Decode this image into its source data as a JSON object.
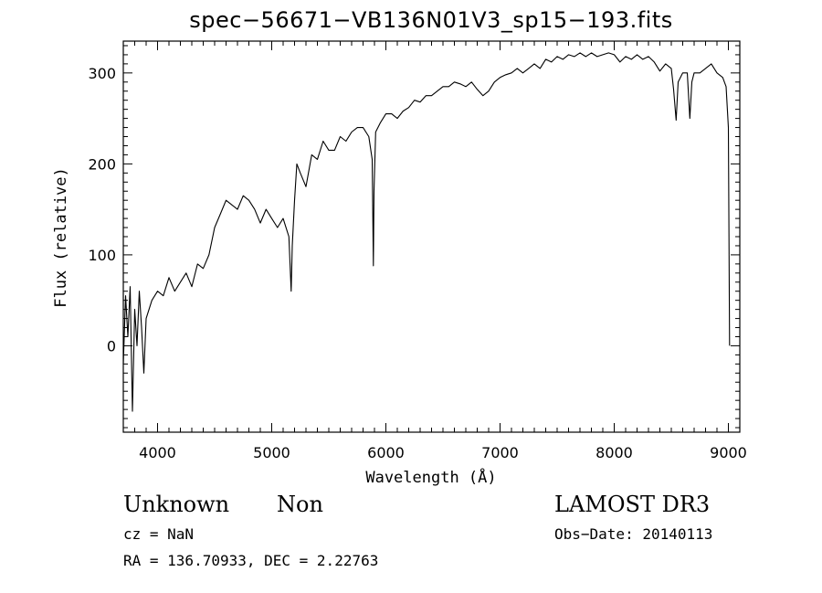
{
  "chart_data": {
    "type": "line",
    "title": "spec−56671−VB136N01V3_sp15−193.fits",
    "xlabel": "Wavelength (Å)",
    "ylabel": "Flux (relative)",
    "xlim": [
      3700,
      9100
    ],
    "ylim": [
      -95,
      335
    ],
    "xticks": [
      4000,
      5000,
      6000,
      7000,
      8000,
      9000
    ],
    "yticks": [
      0,
      100,
      200,
      300
    ],
    "grid": false,
    "series": [
      {
        "x": [
          3700,
          3720,
          3740,
          3760,
          3780,
          3800,
          3820,
          3840,
          3860,
          3880,
          3900,
          3950,
          4000,
          4050,
          4100,
          4150,
          4200,
          4250,
          4300,
          4350,
          4400,
          4450,
          4500,
          4550,
          4600,
          4650,
          4700,
          4750,
          4800,
          4850,
          4900,
          4950,
          5000,
          5050,
          5100,
          5150,
          5170,
          5180,
          5200,
          5220,
          5250,
          5300,
          5350,
          5400,
          5450,
          5500,
          5550,
          5600,
          5650,
          5700,
          5750,
          5800,
          5850,
          5880,
          5890,
          5896,
          5910,
          5950,
          6000,
          6050,
          6100,
          6150,
          6200,
          6250,
          6300,
          6350,
          6400,
          6450,
          6500,
          6550,
          6600,
          6650,
          6700,
          6750,
          6800,
          6850,
          6900,
          6950,
          7000,
          7050,
          7100,
          7150,
          7200,
          7250,
          7300,
          7350,
          7400,
          7450,
          7500,
          7550,
          7600,
          7650,
          7700,
          7750,
          7800,
          7850,
          7900,
          7950,
          8000,
          8050,
          8100,
          8150,
          8200,
          8250,
          8300,
          8350,
          8400,
          8450,
          8500,
          8520,
          8542,
          8560,
          8600,
          8640,
          8662,
          8680,
          8700,
          8750,
          8800,
          8850,
          8900,
          8950,
          8980,
          9000,
          9010
        ],
        "y": [
          -20,
          55,
          10,
          65,
          -72,
          40,
          0,
          60,
          20,
          -30,
          30,
          50,
          60,
          55,
          75,
          60,
          70,
          80,
          65,
          90,
          85,
          100,
          130,
          145,
          160,
          155,
          150,
          165,
          160,
          150,
          135,
          150,
          140,
          130,
          140,
          120,
          60,
          110,
          160,
          200,
          190,
          175,
          210,
          205,
          225,
          215,
          215,
          230,
          225,
          235,
          240,
          240,
          230,
          205,
          88,
          170,
          235,
          245,
          255,
          255,
          250,
          258,
          262,
          270,
          268,
          275,
          275,
          280,
          285,
          285,
          290,
          288,
          285,
          290,
          282,
          275,
          280,
          290,
          295,
          298,
          300,
          305,
          300,
          305,
          310,
          305,
          315,
          312,
          318,
          315,
          320,
          318,
          322,
          318,
          322,
          318,
          320,
          322,
          320,
          312,
          318,
          315,
          320,
          315,
          318,
          312,
          302,
          310,
          305,
          282,
          248,
          290,
          300,
          300,
          250,
          290,
          300,
          300,
          305,
          310,
          300,
          295,
          285,
          240,
          0
        ]
      }
    ]
  },
  "info": {
    "class_label": "Unknown",
    "subclass_label": "Non",
    "survey_label": "LAMOST DR3",
    "cz_text": "cz = NaN",
    "obs_date_text": "Obs−Date: 20140113",
    "radec_text": "RA = 136.70933, DEC =    2.22763"
  }
}
